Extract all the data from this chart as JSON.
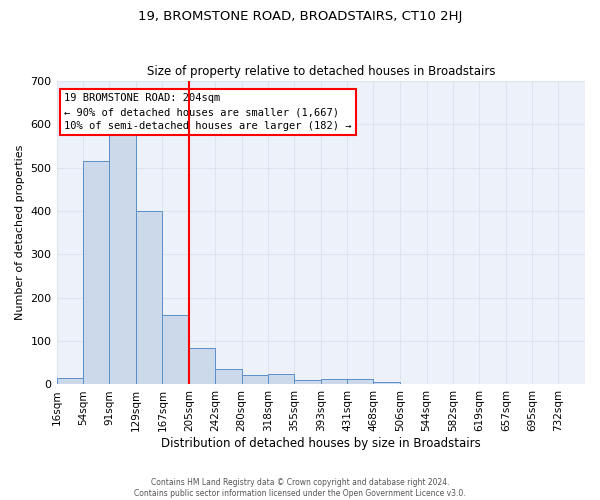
{
  "title": "19, BROMSTONE ROAD, BROADSTAIRS, CT10 2HJ",
  "subtitle": "Size of property relative to detached houses in Broadstairs",
  "xlabel": "Distribution of detached houses by size in Broadstairs",
  "ylabel": "Number of detached properties",
  "bar_color": "#ccd9ea",
  "bar_edge_color": "#5b8fc9",
  "bins": [
    16,
    54,
    91,
    129,
    167,
    205,
    242,
    280,
    318,
    355,
    393,
    431,
    468,
    506,
    544,
    582,
    619,
    657,
    695,
    732,
    770
  ],
  "counts": [
    15,
    515,
    590,
    400,
    160,
    85,
    35,
    22,
    24,
    10,
    13,
    13,
    5,
    0,
    0,
    0,
    0,
    0,
    0,
    0
  ],
  "red_line_x": 205,
  "ylim": [
    0,
    700
  ],
  "yticks": [
    0,
    100,
    200,
    300,
    400,
    500,
    600,
    700
  ],
  "annotation_line1": "19 BROMSTONE ROAD: 204sqm",
  "annotation_line2": "← 90% of detached houses are smaller (1,667)",
  "annotation_line3": "10% of semi-detached houses are larger (182) →",
  "footer_line1": "Contains HM Land Registry data © Crown copyright and database right 2024.",
  "footer_line2": "Contains public sector information licensed under the Open Government Licence v3.0.",
  "grid_color": "#dce4f0",
  "background_color": "#edf1f9"
}
